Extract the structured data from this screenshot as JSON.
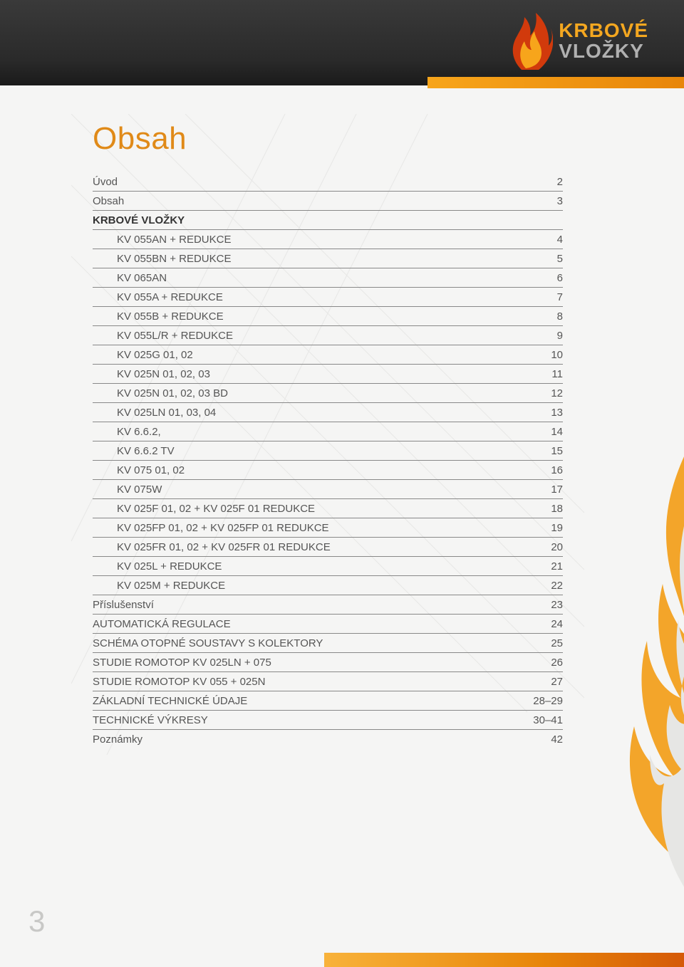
{
  "brand": {
    "line1": "KRBOVÉ",
    "line2": "VLOŽKY"
  },
  "title": "Obsah",
  "page_number": "3",
  "colors": {
    "title": "#e08a18",
    "row_text": "#555555",
    "section_text": "#333333",
    "rule": "#888888",
    "header_orange": "#f7a51b",
    "logo_orange": "#f4a720",
    "logo_gray": "#b0b0b0",
    "page_bg": "#f5f5f4"
  },
  "typography": {
    "title_fontsize": 44,
    "row_fontsize": 15,
    "pagenum_fontsize": 42,
    "logo_fontsize": 28
  },
  "toc": [
    {
      "label": "Úvod",
      "page": "2",
      "indent": false,
      "section": false
    },
    {
      "label": "Obsah",
      "page": "3",
      "indent": false,
      "section": false
    },
    {
      "label": "KRBOVÉ VLOŽKY",
      "page": "",
      "indent": false,
      "section": true
    },
    {
      "label": "KV 055AN + REDUKCE",
      "page": "4",
      "indent": true,
      "section": false
    },
    {
      "label": "KV 055BN + REDUKCE",
      "page": "5",
      "indent": true,
      "section": false
    },
    {
      "label": "KV 065AN",
      "page": "6",
      "indent": true,
      "section": false
    },
    {
      "label": "KV 055A + REDUKCE",
      "page": "7",
      "indent": true,
      "section": false
    },
    {
      "label": "KV 055B + REDUKCE",
      "page": "8",
      "indent": true,
      "section": false
    },
    {
      "label": "KV 055L/R + REDUKCE",
      "page": "9",
      "indent": true,
      "section": false
    },
    {
      "label": "KV 025G 01, 02",
      "page": "10",
      "indent": true,
      "section": false
    },
    {
      "label": "KV 025N 01, 02, 03",
      "page": "11",
      "indent": true,
      "section": false
    },
    {
      "label": "KV 025N 01, 02, 03 BD",
      "page": "12",
      "indent": true,
      "section": false
    },
    {
      "label": "KV 025LN 01, 03, 04",
      "page": "13",
      "indent": true,
      "section": false
    },
    {
      "label": "KV 6.6.2,",
      "page": "14",
      "indent": true,
      "section": false
    },
    {
      "label": "KV 6.6.2 TV",
      "page": "15",
      "indent": true,
      "section": false
    },
    {
      "label": "KV 075 01, 02",
      "page": "16",
      "indent": true,
      "section": false
    },
    {
      "label": "KV 075W",
      "page": "17",
      "indent": true,
      "section": false
    },
    {
      "label": "KV 025F 01, 02 + KV 025F 01 REDUKCE",
      "page": "18",
      "indent": true,
      "section": false
    },
    {
      "label": "KV 025FP 01, 02 + KV 025FP 01 REDUKCE",
      "page": "19",
      "indent": true,
      "section": false
    },
    {
      "label": "KV 025FR 01, 02 + KV 025FR 01 REDUKCE",
      "page": "20",
      "indent": true,
      "section": false
    },
    {
      "label": "KV 025L + REDUKCE",
      "page": "21",
      "indent": true,
      "section": false
    },
    {
      "label": "KV 025M + REDUKCE",
      "page": "22",
      "indent": true,
      "section": false
    },
    {
      "label": "Příslušenství",
      "page": "23",
      "indent": false,
      "section": false
    },
    {
      "label": "AUTOMATICKÁ REGULACE",
      "page": "24",
      "indent": false,
      "section": false
    },
    {
      "label": "SCHÉMA OTOPNÉ SOUSTAVY S KOLEKTORY",
      "page": "25",
      "indent": false,
      "section": false
    },
    {
      "label": "STUDIE ROMOTOP KV 025LN + 075",
      "page": "26",
      "indent": false,
      "section": false
    },
    {
      "label": "STUDIE ROMOTOP KV 055 + 025N",
      "page": "27",
      "indent": false,
      "section": false
    },
    {
      "label": "ZÁKLADNÍ TECHNICKÉ ÚDAJE",
      "page": "28–29",
      "indent": false,
      "section": false
    },
    {
      "label": "TECHNICKÉ VÝKRESY",
      "page": "30–41",
      "indent": false,
      "section": false
    },
    {
      "label": "Poznámky",
      "page": "42",
      "indent": false,
      "section": false,
      "noline": true
    }
  ]
}
